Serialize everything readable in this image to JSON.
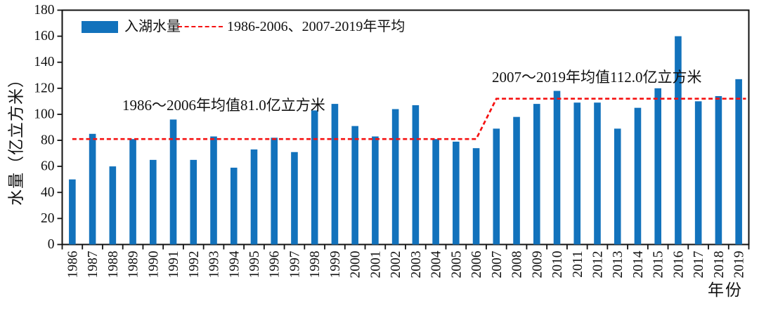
{
  "chart_data": {
    "type": "bar",
    "title": "",
    "xlabel": "年份",
    "ylabel": "水量（亿立方米）",
    "ylim": [
      0,
      180
    ],
    "ytick_interval": 20,
    "grid": false,
    "legend_position": "top-left-inside",
    "categories": [
      "1986",
      "1987",
      "1988",
      "1989",
      "1990",
      "1991",
      "1992",
      "1993",
      "1994",
      "1995",
      "1996",
      "1997",
      "1998",
      "1999",
      "2000",
      "2001",
      "2002",
      "2003",
      "2004",
      "2005",
      "2006",
      "2007",
      "2008",
      "2009",
      "2010",
      "2011",
      "2012",
      "2013",
      "2014",
      "2015",
      "2016",
      "2017",
      "2018",
      "2019"
    ],
    "series": [
      {
        "name": "入湖水量",
        "color": "#1272bc",
        "values": [
          50,
          85,
          60,
          81,
          65,
          96,
          65,
          83,
          59,
          73,
          82,
          71,
          103,
          108,
          91,
          83,
          104,
          107,
          81,
          79,
          74,
          89,
          98,
          108,
          118,
          109,
          109,
          89,
          105,
          120,
          160,
          110,
          114,
          127
        ]
      }
    ],
    "average_line": {
      "label": "1986-2006、2007-2019年平均",
      "color": "#f51111",
      "segments": [
        {
          "start_category": "1986",
          "end_category": "2006",
          "value": 81.0
        },
        {
          "start_category": "2007",
          "end_category": "2019",
          "value": 112.0
        }
      ]
    },
    "annotations": [
      {
        "text": "1986～2006年均值81.0亿立方米"
      },
      {
        "text": "2007～2019年均值112.0亿立方米"
      }
    ],
    "axis_color": "#111111"
  }
}
